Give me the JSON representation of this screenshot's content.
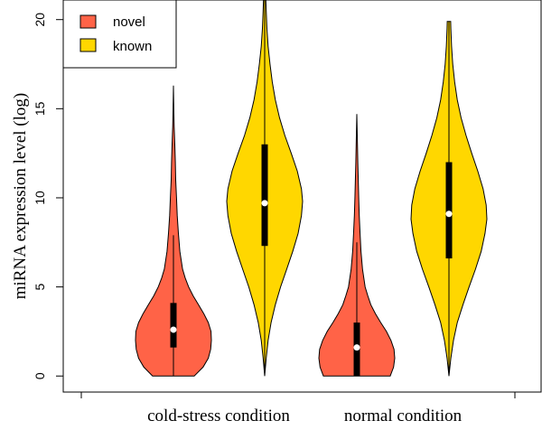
{
  "chart_data": {
    "type": "violin",
    "title": "",
    "xlabel": "",
    "ylabel": "miRNA expression level (log)",
    "ylim": [
      -0.9,
      21.1
    ],
    "yticks": [
      0,
      5,
      10,
      15,
      20
    ],
    "groups": [
      "cold-stress condition",
      "normal condition"
    ],
    "legend": {
      "position": "top-left",
      "entries": [
        {
          "name": "novel",
          "color": "#FF6347"
        },
        {
          "name": "known",
          "color": "#FFD700"
        }
      ]
    },
    "series": [
      {
        "name": "novel",
        "color": "#FF6347",
        "violins": [
          {
            "group": "cold-stress condition",
            "min": 0,
            "max": 16.3,
            "q1": 1.6,
            "median": 2.6,
            "q3": 4.1,
            "whisker_low": 0,
            "whisker_high": 7.9,
            "profile": [
              [
                0,
                0.55
              ],
              [
                0.5,
                0.78
              ],
              [
                1,
                0.92
              ],
              [
                1.5,
                0.98
              ],
              [
                2,
                1.0
              ],
              [
                2.5,
                0.99
              ],
              [
                3,
                0.92
              ],
              [
                3.5,
                0.8
              ],
              [
                4,
                0.66
              ],
              [
                4.5,
                0.52
              ],
              [
                5,
                0.4
              ],
              [
                5.5,
                0.31
              ],
              [
                6,
                0.24
              ],
              [
                7,
                0.17
              ],
              [
                8,
                0.13
              ],
              [
                9,
                0.1
              ],
              [
                10,
                0.08
              ],
              [
                11,
                0.06
              ],
              [
                12,
                0.05
              ],
              [
                13,
                0.035
              ],
              [
                14,
                0.02
              ],
              [
                15,
                0.01
              ],
              [
                16.3,
                0.0
              ]
            ]
          },
          {
            "group": "normal condition",
            "min": 0,
            "max": 14.7,
            "q1": 0,
            "median": 1.6,
            "q3": 3.0,
            "whisker_low": 0,
            "whisker_high": 7.5,
            "profile": [
              [
                0,
                0.88
              ],
              [
                0.5,
                0.97
              ],
              [
                1,
                1.0
              ],
              [
                1.5,
                0.98
              ],
              [
                2,
                0.9
              ],
              [
                2.5,
                0.78
              ],
              [
                3,
                0.63
              ],
              [
                3.5,
                0.49
              ],
              [
                4,
                0.37
              ],
              [
                4.5,
                0.29
              ],
              [
                5,
                0.22
              ],
              [
                6,
                0.15
              ],
              [
                7,
                0.11
              ],
              [
                8,
                0.085
              ],
              [
                9,
                0.065
              ],
              [
                10,
                0.05
              ],
              [
                11,
                0.038
              ],
              [
                12,
                0.027
              ],
              [
                13,
                0.017
              ],
              [
                14,
                0.007
              ],
              [
                14.7,
                0.0
              ]
            ]
          }
        ]
      },
      {
        "name": "known",
        "color": "#FFD700",
        "violins": [
          {
            "group": "cold-stress condition",
            "min": 0,
            "max": 21.1,
            "q1": 7.3,
            "median": 9.7,
            "q3": 13.0,
            "whisker_low": 0,
            "whisker_high": 21.1,
            "profile": [
              [
                0,
                0.0
              ],
              [
                1,
                0.04
              ],
              [
                2,
                0.09
              ],
              [
                3,
                0.17
              ],
              [
                4,
                0.28
              ],
              [
                5,
                0.42
              ],
              [
                6,
                0.58
              ],
              [
                7,
                0.74
              ],
              [
                8,
                0.88
              ],
              [
                9,
                0.97
              ],
              [
                9.8,
                1.0
              ],
              [
                10.5,
                0.97
              ],
              [
                11.5,
                0.86
              ],
              [
                12.5,
                0.7
              ],
              [
                13.5,
                0.53
              ],
              [
                14.5,
                0.39
              ],
              [
                15.5,
                0.28
              ],
              [
                16.5,
                0.2
              ],
              [
                17.5,
                0.14
              ],
              [
                18.5,
                0.09
              ],
              [
                19.5,
                0.06
              ],
              [
                20.5,
                0.04
              ],
              [
                21.1,
                0.03
              ]
            ]
          },
          {
            "group": "normal condition",
            "min": 0,
            "max": 19.9,
            "q1": 6.6,
            "median": 9.1,
            "q3": 12.0,
            "whisker_low": 0,
            "whisker_high": 19.9,
            "profile": [
              [
                0,
                0.0
              ],
              [
                1,
                0.05
              ],
              [
                2,
                0.12
              ],
              [
                3,
                0.22
              ],
              [
                4,
                0.37
              ],
              [
                5,
                0.53
              ],
              [
                6,
                0.7
              ],
              [
                7,
                0.85
              ],
              [
                8,
                0.95
              ],
              [
                8.8,
                1.0
              ],
              [
                9.6,
                0.98
              ],
              [
                10.5,
                0.9
              ],
              [
                11.5,
                0.76
              ],
              [
                12.5,
                0.6
              ],
              [
                13.5,
                0.45
              ],
              [
                14.5,
                0.32
              ],
              [
                15.5,
                0.22
              ],
              [
                16.5,
                0.15
              ],
              [
                17.5,
                0.1
              ],
              [
                18.5,
                0.07
              ],
              [
                19.5,
                0.05
              ],
              [
                19.9,
                0.045
              ]
            ]
          }
        ]
      }
    ]
  }
}
